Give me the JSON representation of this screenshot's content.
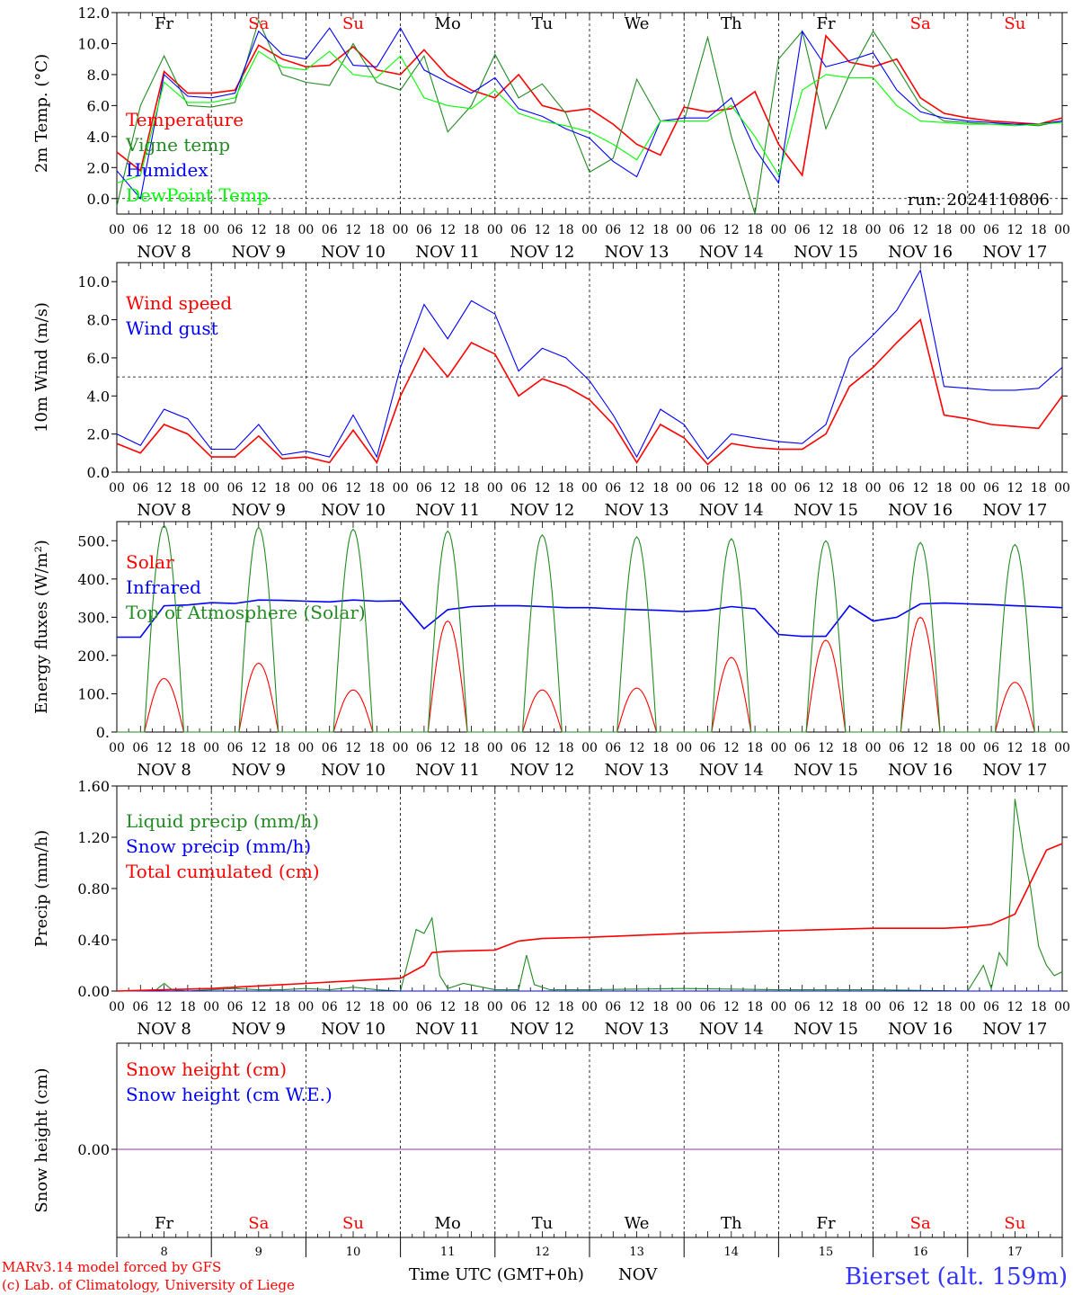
{
  "colors": {
    "red": "#ff0000",
    "darkgreen": "#228b22",
    "blue": "#0000ff",
    "lightgreen": "#00ff00",
    "purple": "#9b30b0",
    "black": "#000000",
    "footer_blue": "#3333ff"
  },
  "x_axis": {
    "hour_labels": [
      "00",
      "06",
      "12",
      "18"
    ],
    "day_labels": [
      "NOV  8",
      "NOV  9",
      "NOV 10",
      "NOV 11",
      "NOV 12",
      "NOV 13",
      "NOV 14",
      "NOV 15",
      "NOV 16",
      "NOV 17"
    ],
    "final_hour_label": "00",
    "weekdays": [
      {
        "text": "Fr",
        "weekend": false
      },
      {
        "text": "Sa",
        "weekend": true
      },
      {
        "text": "Su",
        "weekend": true
      },
      {
        "text": "Mo",
        "weekend": false
      },
      {
        "text": "Tu",
        "weekend": false
      },
      {
        "text": "We",
        "weekend": false
      },
      {
        "text": "Th",
        "weekend": false
      },
      {
        "text": "Fr",
        "weekend": false
      },
      {
        "text": "Sa",
        "weekend": true
      },
      {
        "text": "Su",
        "weekend": true
      }
    ],
    "day_numbers": [
      "8",
      "9",
      "10",
      "11",
      "12",
      "13",
      "14",
      "15",
      "16",
      "17"
    ]
  },
  "chart_data": [
    {
      "type": "line",
      "id": "temperature",
      "ylabel": "2m Temp. (°C)",
      "ylim": [
        -1,
        12
      ],
      "yticks": [
        "0.0",
        "2.0",
        "4.0",
        "6.0",
        "8.0",
        "10.0",
        "12.0"
      ],
      "reference_line": 0,
      "annotation": "run: 2024110806",
      "series": [
        {
          "name": "Temperature",
          "color": "#ff0000",
          "hours": [
            0,
            6,
            12,
            18,
            24,
            30,
            36,
            42,
            48,
            54,
            60,
            66,
            72,
            78,
            84,
            90,
            96,
            102,
            108,
            114,
            120,
            126,
            132,
            138,
            144,
            150,
            156,
            162,
            168,
            174,
            180,
            186,
            192,
            198,
            204,
            210,
            216,
            222,
            228,
            234,
            240
          ],
          "values": [
            3.0,
            1.8,
            8.2,
            6.8,
            6.8,
            7.0,
            9.9,
            9.0,
            8.5,
            8.6,
            9.8,
            8.3,
            8.0,
            9.6,
            7.9,
            7.0,
            6.5,
            8.0,
            6.0,
            5.6,
            5.8,
            4.8,
            3.5,
            2.8,
            5.9,
            5.6,
            5.8,
            6.9,
            3.5,
            1.5,
            10.5,
            8.8,
            8.5,
            9.0,
            6.5,
            5.5,
            5.2,
            5.0,
            4.9,
            4.8,
            5.2
          ]
        },
        {
          "name": "Vigne temp",
          "color": "#228b22",
          "hours": [
            0,
            6,
            12,
            18,
            24,
            30,
            36,
            42,
            48,
            54,
            60,
            66,
            72,
            78,
            84,
            90,
            96,
            102,
            108,
            114,
            120,
            126,
            132,
            138,
            144,
            150,
            156,
            162,
            168,
            174,
            180,
            186,
            192,
            198,
            204,
            210,
            216,
            222,
            228,
            234,
            240
          ],
          "values": [
            -0.5,
            6.0,
            9.2,
            6.0,
            5.9,
            6.2,
            11.5,
            8.0,
            7.5,
            7.3,
            10.0,
            7.5,
            7.0,
            9.2,
            4.3,
            6.0,
            9.3,
            6.5,
            7.4,
            5.5,
            1.7,
            2.6,
            7.7,
            5.0,
            5.0,
            10.4,
            4.0,
            -1.0,
            9.0,
            10.8,
            4.5,
            8.0,
            10.8,
            8.5,
            6.0,
            5.0,
            4.9,
            4.8,
            4.8,
            4.7,
            5.0
          ]
        },
        {
          "name": "Humidex",
          "color": "#0000ff",
          "hours": [
            0,
            6,
            12,
            18,
            24,
            30,
            36,
            42,
            48,
            54,
            60,
            66,
            72,
            78,
            84,
            90,
            96,
            102,
            108,
            114,
            120,
            126,
            132,
            138,
            144,
            150,
            156,
            162,
            168,
            174,
            180,
            186,
            192,
            198,
            204,
            210,
            216,
            222,
            228,
            234,
            240
          ],
          "values": [
            1.8,
            0.0,
            8.0,
            6.6,
            6.5,
            6.8,
            10.8,
            9.3,
            9.0,
            11.0,
            8.6,
            8.5,
            11.0,
            8.3,
            7.5,
            6.8,
            7.8,
            5.8,
            5.3,
            4.5,
            3.9,
            2.4,
            1.4,
            5.0,
            5.2,
            5.2,
            6.5,
            3.2,
            1.0,
            10.8,
            8.5,
            8.9,
            9.4,
            7.0,
            5.6,
            5.2,
            5.0,
            4.9,
            4.8,
            4.8,
            5.0
          ]
        },
        {
          "name": "DewPoint Temp",
          "color": "#00ff00",
          "hours": [
            0,
            6,
            12,
            18,
            24,
            30,
            36,
            42,
            48,
            54,
            60,
            66,
            72,
            78,
            84,
            90,
            96,
            102,
            108,
            114,
            120,
            126,
            132,
            138,
            144,
            150,
            156,
            162,
            168,
            174,
            180,
            186,
            192,
            198,
            204,
            210,
            216,
            222,
            228,
            234,
            240
          ],
          "values": [
            1.0,
            1.5,
            7.5,
            6.2,
            6.2,
            6.5,
            9.5,
            8.5,
            8.3,
            9.5,
            8.0,
            7.8,
            9.2,
            6.5,
            6.0,
            5.8,
            7.0,
            5.5,
            5.0,
            4.7,
            4.3,
            3.5,
            2.5,
            5.0,
            5.0,
            5.0,
            6.0,
            4.0,
            1.5,
            7.0,
            8.0,
            7.8,
            7.8,
            6.0,
            5.0,
            4.9,
            4.8,
            4.8,
            4.7,
            4.8,
            4.9
          ]
        }
      ]
    },
    {
      "type": "line",
      "id": "wind",
      "ylabel": "10m Wind (m/s)",
      "ylim": [
        0,
        11
      ],
      "yticks": [
        "0.0",
        "2.0",
        "4.0",
        "6.0",
        "8.0",
        "10.0"
      ],
      "reference_line": 5,
      "series": [
        {
          "name": "Wind speed",
          "color": "#ff0000",
          "hours": [
            0,
            6,
            12,
            18,
            24,
            30,
            36,
            42,
            48,
            54,
            60,
            66,
            72,
            78,
            84,
            90,
            96,
            102,
            108,
            114,
            120,
            126,
            132,
            138,
            144,
            150,
            156,
            162,
            168,
            174,
            180,
            186,
            192,
            198,
            204,
            210,
            216,
            222,
            228,
            234,
            240
          ],
          "values": [
            1.5,
            1.0,
            2.5,
            2.0,
            0.8,
            0.8,
            1.9,
            0.7,
            0.8,
            0.5,
            2.2,
            0.5,
            4.0,
            6.5,
            5.0,
            6.8,
            6.2,
            4.0,
            4.9,
            4.5,
            3.8,
            2.5,
            0.5,
            2.5,
            1.8,
            0.4,
            1.5,
            1.3,
            1.2,
            1.2,
            2.0,
            4.5,
            5.5,
            6.8,
            8.0,
            3.0,
            2.8,
            2.5,
            2.4,
            2.3,
            4.0
          ]
        },
        {
          "name": "Wind gust",
          "color": "#0000ff",
          "hours": [
            0,
            6,
            12,
            18,
            24,
            30,
            36,
            42,
            48,
            54,
            60,
            66,
            72,
            78,
            84,
            90,
            96,
            102,
            108,
            114,
            120,
            126,
            132,
            138,
            144,
            150,
            156,
            162,
            168,
            174,
            180,
            186,
            192,
            198,
            204,
            210,
            216,
            222,
            228,
            234,
            240
          ],
          "values": [
            2.0,
            1.4,
            3.3,
            2.8,
            1.2,
            1.2,
            2.5,
            0.9,
            1.1,
            0.8,
            3.0,
            0.8,
            5.5,
            8.8,
            7.0,
            9.0,
            8.3,
            5.3,
            6.5,
            6.0,
            4.8,
            3.0,
            0.8,
            3.3,
            2.5,
            0.7,
            2.0,
            1.8,
            1.6,
            1.5,
            2.5,
            6.0,
            7.2,
            8.5,
            10.6,
            4.5,
            4.4,
            4.3,
            4.3,
            4.4,
            5.5
          ]
        }
      ]
    },
    {
      "type": "line",
      "id": "energy",
      "ylabel": "Energy fluxes (W/m²)",
      "ylim": [
        0,
        550
      ],
      "yticks": [
        "0.",
        "100.",
        "200.",
        "300.",
        "400.",
        "500."
      ],
      "series": [
        {
          "name": "Solar",
          "color": "#ff0000",
          "day_peaks": [
            140,
            180,
            110,
            290,
            110,
            115,
            195,
            240,
            300,
            130
          ]
        },
        {
          "name": "Infrared",
          "color": "#0000ff",
          "hours": [
            0,
            6,
            12,
            18,
            24,
            30,
            36,
            42,
            48,
            54,
            60,
            66,
            72,
            78,
            84,
            90,
            96,
            102,
            108,
            114,
            120,
            126,
            132,
            138,
            144,
            150,
            156,
            162,
            168,
            174,
            180,
            186,
            192,
            198,
            204,
            210,
            216,
            222,
            228,
            234,
            240
          ],
          "values": [
            248,
            248,
            330,
            332,
            338,
            336,
            345,
            344,
            342,
            340,
            345,
            342,
            343,
            270,
            320,
            328,
            330,
            330,
            328,
            325,
            325,
            322,
            320,
            318,
            315,
            318,
            328,
            322,
            255,
            250,
            250,
            330,
            290,
            300,
            335,
            337,
            335,
            333,
            330,
            328,
            325
          ]
        },
        {
          "name": "Top of Atmosphere (Solar)",
          "color": "#228b22",
          "day_peaks": [
            540,
            535,
            530,
            525,
            515,
            510,
            505,
            500,
            495,
            490
          ]
        }
      ]
    },
    {
      "type": "line",
      "id": "precip",
      "ylabel": "Precip (mm/h)",
      "ylim": [
        0,
        1.6
      ],
      "yticks": [
        "0.00",
        "0.40",
        "0.80",
        "1.20",
        "1.60"
      ],
      "series": [
        {
          "name": "Liquid precip (mm/h)",
          "color": "#228b22",
          "hours": [
            0,
            6,
            10,
            12,
            14,
            18,
            24,
            30,
            36,
            42,
            48,
            54,
            60,
            66,
            72,
            76,
            78,
            80,
            82,
            84,
            88,
            96,
            102,
            104,
            106,
            110,
            120,
            144,
            168,
            192,
            216,
            218,
            220,
            222,
            224,
            226,
            228,
            230,
            232,
            234,
            236,
            238,
            240
          ],
          "values": [
            0,
            0,
            0.01,
            0.06,
            0.01,
            0,
            0.01,
            0.02,
            0.01,
            0.01,
            0.02,
            0.01,
            0.03,
            0.01,
            0,
            0.48,
            0.45,
            0.57,
            0.12,
            0.02,
            0.06,
            0.01,
            0.01,
            0.28,
            0.05,
            0.01,
            0.01,
            0.02,
            0.01,
            0.01,
            0,
            0.1,
            0.2,
            0.02,
            0.3,
            0.2,
            1.5,
            1.1,
            0.8,
            0.35,
            0.2,
            0.12,
            0.15
          ]
        },
        {
          "name": "Snow precip (mm/h)",
          "color": "#0000ff",
          "hours": [
            0,
            240
          ],
          "values": [
            0,
            0
          ]
        },
        {
          "name": "Total cumulated (cm)",
          "color": "#ff0000",
          "hours": [
            0,
            12,
            24,
            36,
            48,
            60,
            72,
            78,
            80,
            84,
            96,
            102,
            108,
            120,
            144,
            168,
            192,
            210,
            216,
            222,
            228,
            232,
            236,
            240
          ],
          "values": [
            0,
            0.01,
            0.02,
            0.04,
            0.06,
            0.08,
            0.1,
            0.2,
            0.3,
            0.31,
            0.32,
            0.39,
            0.41,
            0.42,
            0.45,
            0.47,
            0.49,
            0.49,
            0.5,
            0.52,
            0.6,
            0.85,
            1.1,
            1.15
          ]
        }
      ]
    },
    {
      "type": "line",
      "id": "snow",
      "ylabel": "Snow height (cm)",
      "yticks": [
        "0.00"
      ],
      "series": [
        {
          "name": "Snow height (cm)",
          "color": "#ff0000",
          "hours": [
            0,
            240
          ],
          "values": [
            0,
            0
          ]
        },
        {
          "name": "Snow height (cm W.E.)",
          "color": "#0000ff",
          "hours": [
            0,
            240
          ],
          "values": [
            0,
            0
          ]
        }
      ]
    }
  ],
  "footer": {
    "credit_1": "MARv3.14 model forced by GFS",
    "credit_2": "(c) Lab. of Climatology, University of Liege",
    "xlabel": "Time UTC (GMT+0h)",
    "month": "NOV",
    "station": "Bierset (alt. 159m)"
  }
}
